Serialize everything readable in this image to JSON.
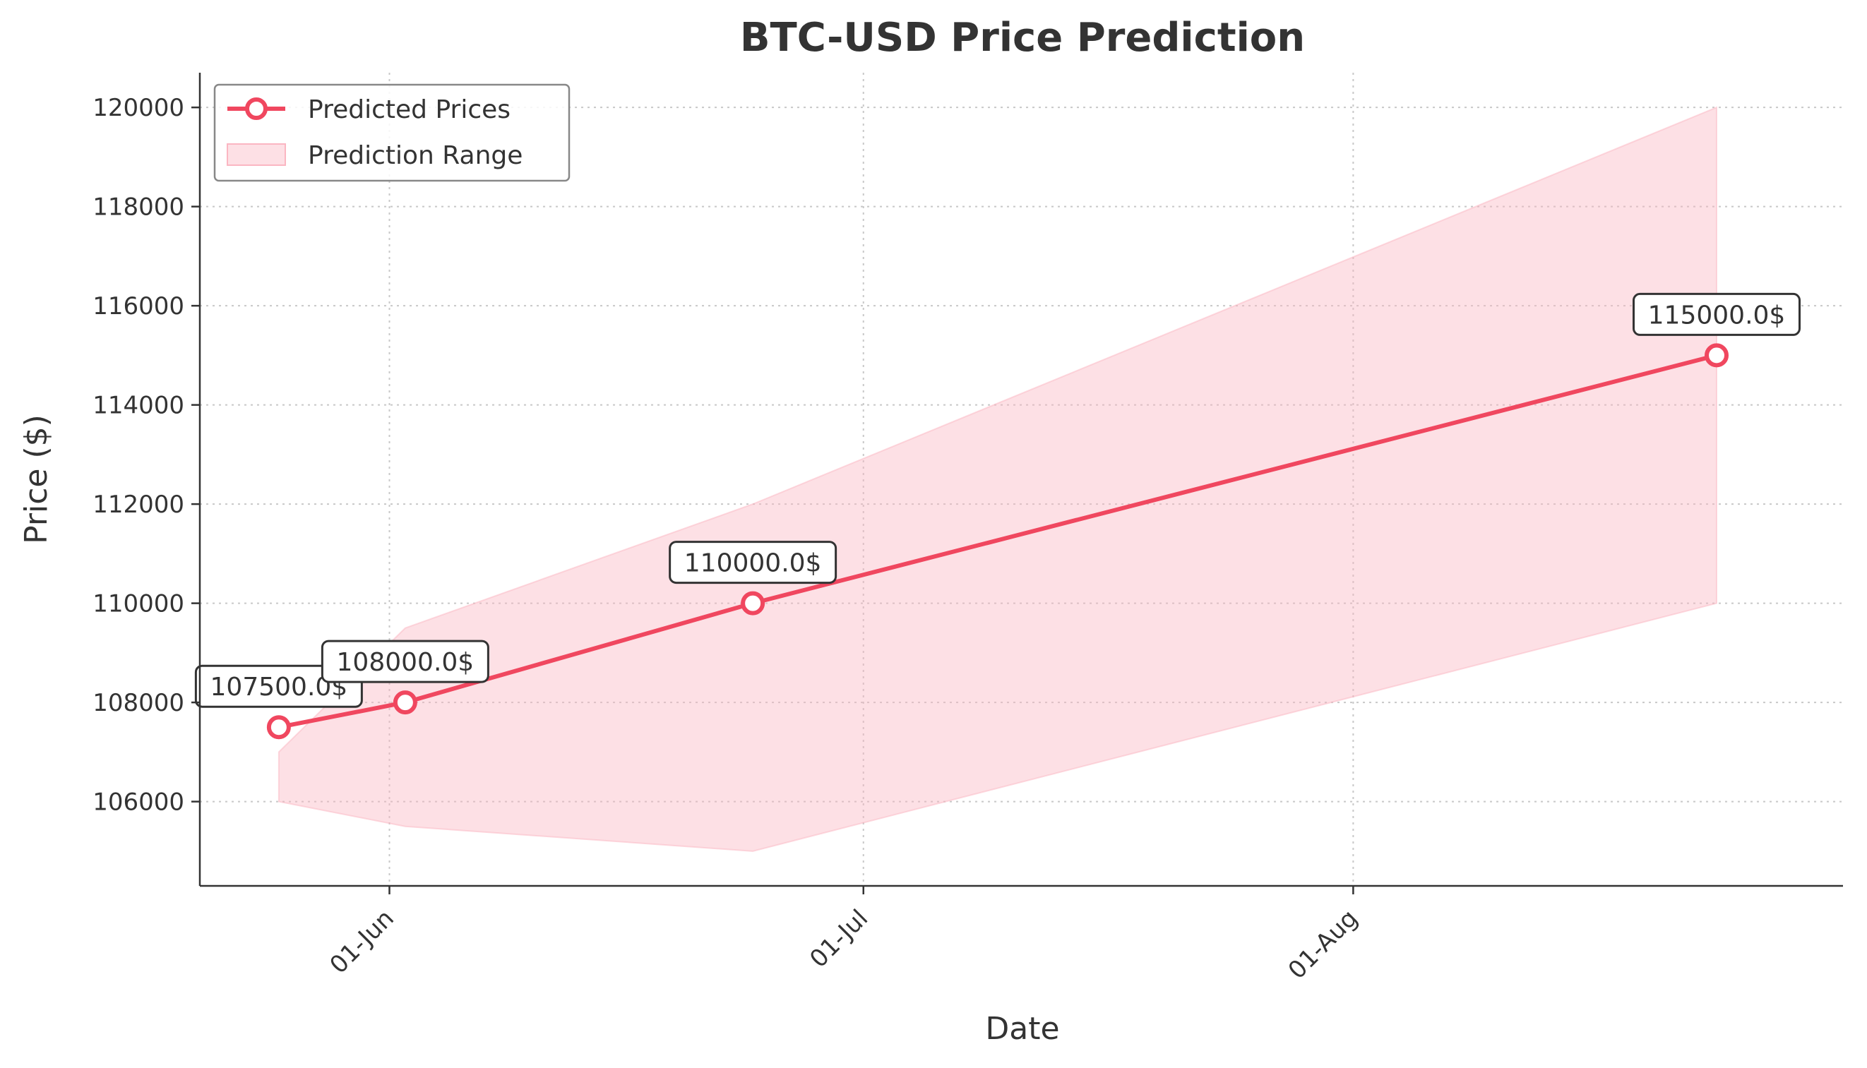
{
  "chart_data": {
    "type": "line",
    "title": "BTC-USD Price Prediction",
    "xlabel": "Date",
    "ylabel": "Price ($)",
    "x": [
      "2025-05-25",
      "2025-06-02",
      "2025-06-24",
      "2025-08-24"
    ],
    "series": [
      {
        "name": "Predicted Prices",
        "values": [
          107500,
          108000,
          110000,
          115000
        ],
        "color": "#f0475f"
      }
    ],
    "range": {
      "name": "Prediction Range",
      "lower": [
        106000,
        105500,
        105000,
        110000
      ],
      "upper": [
        107000,
        109500,
        112000,
        120000
      ],
      "color": "#fbb6c2"
    },
    "data_labels": [
      "107500.0$",
      "108000.0$",
      "110000.0$",
      "115000.0$"
    ],
    "xticks": [
      {
        "date": "2025-06-01",
        "label": "01-Jun"
      },
      {
        "date": "2025-07-01",
        "label": "01-Jul"
      },
      {
        "date": "2025-08-01",
        "label": "01-Aug"
      }
    ],
    "yticks": [
      106000,
      108000,
      110000,
      112000,
      114000,
      116000,
      118000,
      120000
    ],
    "xlim": [
      "2025-05-20",
      "2025-09-01"
    ],
    "ylim": [
      104300,
      120700
    ],
    "grid": true,
    "legend": "top-left"
  }
}
